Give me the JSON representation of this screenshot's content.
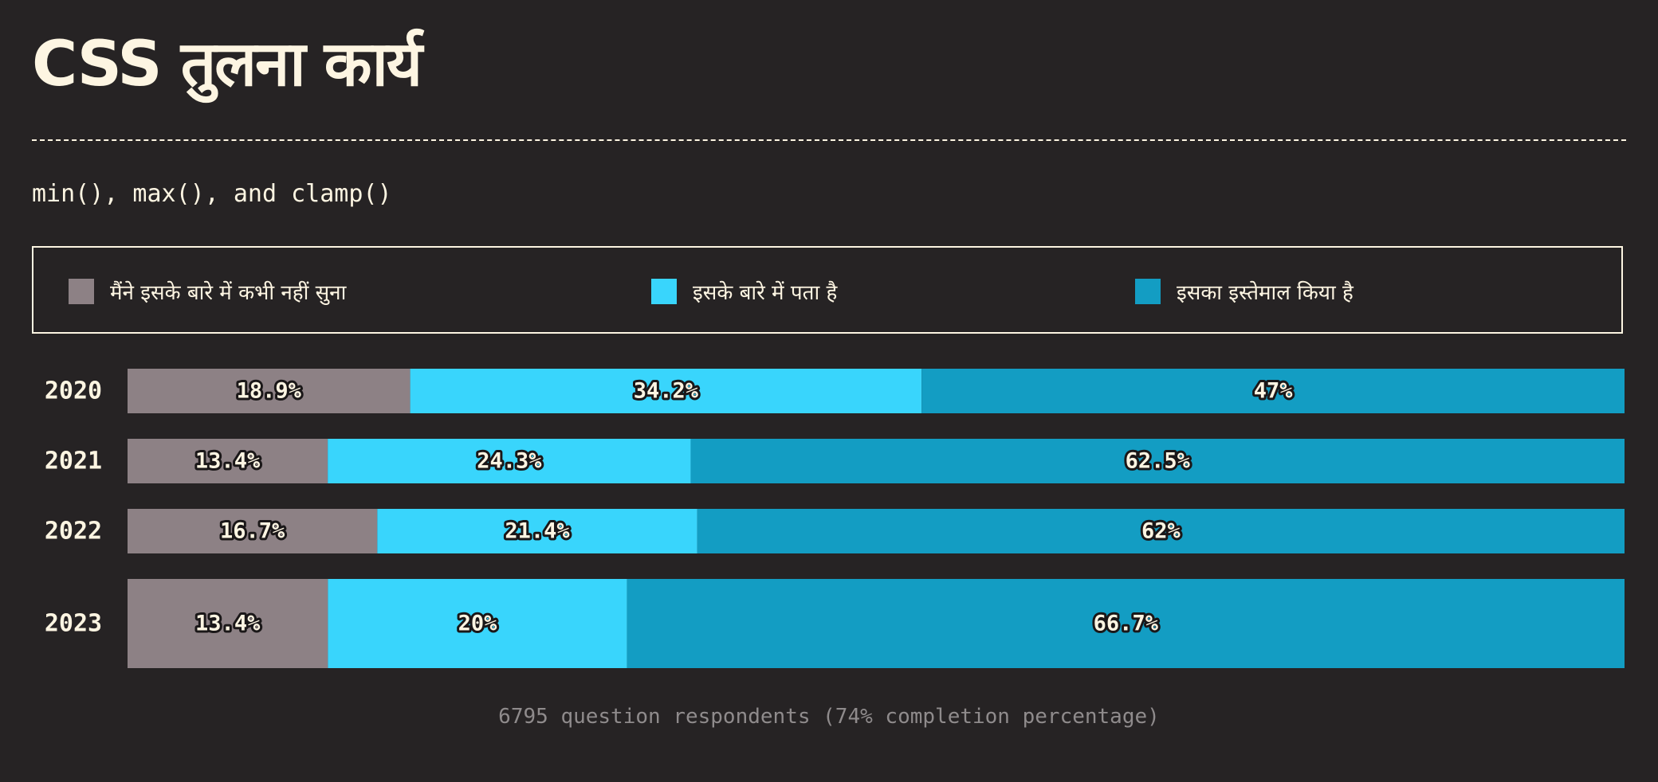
{
  "header": {
    "title": "CSS तुलना कार्य",
    "subtitle": "min(), max(), and clamp()"
  },
  "legend": {
    "items": [
      {
        "label": "मैंने इसके बारे में कभी नहीं सुना",
        "color": "#8d8185"
      },
      {
        "label": "इसके बारे में पता है",
        "color": "#39d5fc"
      },
      {
        "label": "इसका इस्तेमाल किया है",
        "color": "#139dc3"
      }
    ]
  },
  "footer": {
    "text": "6795 question respondents (74% completion percentage)"
  },
  "chart_data": {
    "type": "bar",
    "orientation": "horizontal",
    "stacked": true,
    "categories": [
      "2020",
      "2021",
      "2022",
      "2023"
    ],
    "series": [
      {
        "name": "मैंने इसके बारे में कभी नहीं सुना",
        "color": "#8d8185",
        "values": [
          18.9,
          13.4,
          16.7,
          13.4
        ],
        "labels": [
          "18.9%",
          "13.4%",
          "16.7%",
          "13.4%"
        ]
      },
      {
        "name": "इसके बारे में पता है",
        "color": "#39d5fc",
        "values": [
          34.2,
          24.3,
          21.4,
          20
        ],
        "labels": [
          "34.2%",
          "24.3%",
          "21.4%",
          "20%"
        ]
      },
      {
        "name": "इसका इस्तेमाल किया है",
        "color": "#139dc3",
        "values": [
          47,
          62.5,
          62,
          66.7
        ],
        "labels": [
          "47%",
          "62.5%",
          "62%",
          "66.7%"
        ]
      }
    ],
    "xlim": [
      0,
      100
    ],
    "grid": false,
    "legend_position": "top"
  }
}
